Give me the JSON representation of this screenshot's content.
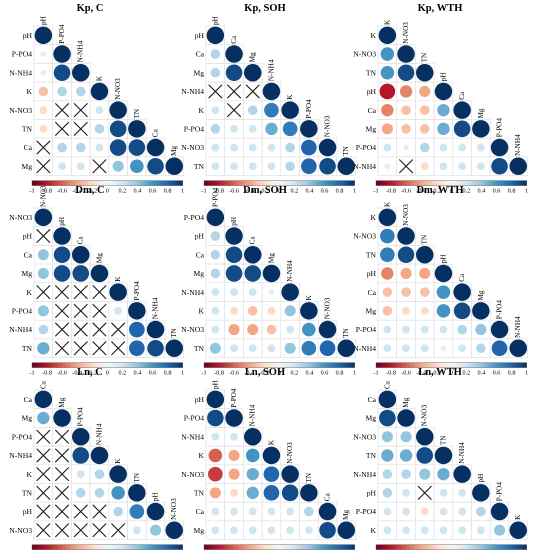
{
  "colors": {
    "neg": "#67001f",
    "mid": "#f7f7f7",
    "pos": "#053061",
    "grid": "#dcdcdc",
    "cross": "#1a1a1a"
  },
  "colorbar_ticks": [
    "-1",
    "-0.8",
    "-0.6",
    "-0.4",
    "-0.2",
    "0",
    "0.2",
    "0.4",
    "0.6",
    "0.8",
    "1"
  ],
  "chart_data": [
    {
      "type": "heatmap",
      "title": "Kp, C",
      "variables": [
        "pH",
        "P-PO4",
        "N-NH4",
        "K",
        "N-NO3",
        "TN",
        "Ca",
        "Mg"
      ],
      "matrix": [
        [
          1,
          null,
          null,
          null,
          null,
          null,
          null,
          null
        ],
        [
          0.1,
          1,
          null,
          null,
          null,
          null,
          null,
          null
        ],
        [
          -0.1,
          0.9,
          1,
          null,
          null,
          null,
          null,
          null
        ],
        [
          -0.3,
          0.3,
          0.3,
          1,
          null,
          null,
          null,
          null
        ],
        [
          -0.2,
          "x",
          "x",
          0.2,
          1,
          null,
          null,
          null
        ],
        [
          -0.2,
          "x",
          "x",
          0.3,
          0.9,
          1,
          null,
          null
        ],
        [
          "x",
          0.3,
          0.3,
          0.2,
          0.9,
          0.9,
          1,
          null
        ],
        [
          "x",
          0.2,
          0.2,
          "x",
          0.4,
          0.6,
          0.9,
          1
        ]
      ]
    },
    {
      "type": "heatmap",
      "title": "Kp, SOH",
      "variables": [
        "pH",
        "Ca",
        "Mg",
        "N-NH4",
        "K",
        "P-PO4",
        "N-NO3",
        "TN"
      ],
      "matrix": [
        [
          1,
          null,
          null,
          null,
          null,
          null,
          null,
          null
        ],
        [
          0.3,
          1,
          null,
          null,
          null,
          null,
          null,
          null
        ],
        [
          0.3,
          0.9,
          1,
          null,
          null,
          null,
          null,
          null
        ],
        [
          "x",
          "x",
          "x",
          1,
          null,
          null,
          null,
          null
        ],
        [
          0.2,
          "x",
          0.3,
          0.7,
          1,
          null,
          null,
          null
        ],
        [
          0.3,
          0.2,
          0.2,
          0.5,
          0.7,
          1,
          null,
          null
        ],
        [
          0.2,
          0.2,
          0.2,
          0.2,
          0.3,
          0.8,
          1,
          null
        ],
        [
          0.2,
          0.2,
          0.2,
          0.2,
          0.3,
          0.8,
          0.9,
          1
        ]
      ]
    },
    {
      "type": "heatmap",
      "title": "Kp, WTH",
      "variables": [
        "K",
        "N-NO3",
        "TN",
        "pH",
        "Ca",
        "Mg",
        "P-PO4",
        "N-NH4"
      ],
      "matrix": [
        [
          1,
          null,
          null,
          null,
          null,
          null,
          null,
          null
        ],
        [
          0.6,
          1,
          null,
          null,
          null,
          null,
          null,
          null
        ],
        [
          0.6,
          0.9,
          1,
          null,
          null,
          null,
          null,
          null
        ],
        [
          -0.8,
          -0.5,
          -0.4,
          1,
          null,
          null,
          null,
          null
        ],
        [
          -0.5,
          -0.3,
          -0.3,
          0.5,
          1,
          null,
          null,
          null
        ],
        [
          -0.4,
          -0.3,
          -0.3,
          0.5,
          0.9,
          1,
          null,
          null
        ],
        [
          0.2,
          0.1,
          0.3,
          0.2,
          0.2,
          0.2,
          1,
          null
        ],
        [
          0.1,
          "x",
          -0.2,
          0.2,
          0.2,
          0.2,
          0.9,
          1
        ]
      ]
    },
    {
      "type": "heatmap",
      "title": "Dm, C",
      "variables": [
        "N-NO3",
        "pH",
        "Ca",
        "Mg",
        "K",
        "P-PO4",
        "N-NH4",
        "TN"
      ],
      "matrix": [
        [
          1,
          null,
          null,
          null,
          null,
          null,
          null,
          null
        ],
        [
          "x",
          1,
          null,
          null,
          null,
          null,
          null,
          null
        ],
        [
          0.4,
          0.9,
          1,
          null,
          null,
          null,
          null,
          null
        ],
        [
          0.4,
          0.9,
          0.9,
          1,
          null,
          null,
          null,
          null
        ],
        [
          "x",
          "x",
          "x",
          "x",
          1,
          null,
          null,
          null
        ],
        [
          0.4,
          "x",
          "x",
          "x",
          0.2,
          1,
          null,
          null
        ],
        [
          0.3,
          "x",
          "x",
          "x",
          "x",
          0.8,
          1,
          null
        ],
        [
          0.5,
          "x",
          "x",
          "x",
          "x",
          0.8,
          0.9,
          1
        ]
      ]
    },
    {
      "type": "heatmap",
      "title": "Dm, SOH",
      "variables": [
        "P-PO4",
        "pH",
        "Ca",
        "Mg",
        "N-NH4",
        "K",
        "N-NO3",
        "TN"
      ],
      "matrix": [
        [
          1,
          null,
          null,
          null,
          null,
          null,
          null,
          null
        ],
        [
          0.3,
          1,
          null,
          null,
          null,
          null,
          null,
          null
        ],
        [
          0.3,
          0.9,
          1,
          null,
          null,
          null,
          null,
          null
        ],
        [
          0.3,
          0.9,
          0.9,
          1,
          null,
          null,
          null,
          null
        ],
        [
          0.2,
          0.2,
          0.2,
          0.1,
          1,
          null,
          null,
          null
        ],
        [
          0.2,
          -0.2,
          -0.3,
          -0.2,
          0.4,
          1,
          null,
          null
        ],
        [
          0.2,
          -0.4,
          -0.4,
          -0.3,
          0.2,
          0.6,
          1,
          null
        ],
        [
          0.4,
          0.2,
          0.2,
          0.2,
          0.4,
          0.7,
          0.8,
          1
        ]
      ]
    },
    {
      "type": "heatmap",
      "title": "Dm, WTH",
      "variables": [
        "K",
        "N-NO3",
        "TN",
        "pH",
        "Ca",
        "Mg",
        "P-PO4",
        "N-NH4"
      ],
      "matrix": [
        [
          1,
          null,
          null,
          null,
          null,
          null,
          null,
          null
        ],
        [
          0.7,
          1,
          null,
          null,
          null,
          null,
          null,
          null
        ],
        [
          0.7,
          0.9,
          1,
          null,
          null,
          null,
          null,
          null
        ],
        [
          -0.5,
          -0.4,
          -0.4,
          1,
          null,
          null,
          null,
          null
        ],
        [
          -0.3,
          -0.3,
          -0.3,
          0.6,
          1,
          null,
          null,
          null
        ],
        [
          -0.3,
          -0.2,
          -0.2,
          0.6,
          0.9,
          1,
          null,
          null
        ],
        [
          0.2,
          0.2,
          0.2,
          0.2,
          0.3,
          0.4,
          1,
          null
        ],
        [
          0.2,
          0.2,
          0.2,
          0.1,
          0.2,
          0.3,
          0.8,
          1
        ]
      ]
    },
    {
      "type": "heatmap",
      "title": "Ln, C",
      "variables": [
        "Ca",
        "Mg",
        "P-PO4",
        "N-NH4",
        "K",
        "TN",
        "pH",
        "N-NO3"
      ],
      "matrix": [
        [
          1,
          null,
          null,
          null,
          null,
          null,
          null,
          null
        ],
        [
          0.5,
          1,
          null,
          null,
          null,
          null,
          null,
          null
        ],
        [
          "x",
          "x",
          1,
          null,
          null,
          null,
          null,
          null
        ],
        [
          "x",
          "x",
          0.9,
          1,
          null,
          null,
          null,
          null
        ],
        [
          "x",
          "x",
          0.2,
          0.3,
          1,
          null,
          null,
          null
        ],
        [
          "x",
          "x",
          0.3,
          0.3,
          0.6,
          1,
          null,
          null
        ],
        [
          "x",
          "x",
          "x",
          "x",
          0.3,
          0.7,
          1,
          null
        ],
        [
          "x",
          "x",
          "x",
          "x",
          "x",
          0.2,
          0.4,
          1
        ]
      ]
    },
    {
      "type": "heatmap",
      "title": "Ln, SOH",
      "variables": [
        "pH",
        "P-PO4",
        "N-NH4",
        "K",
        "N-NO3",
        "TN",
        "Ca",
        "Mg"
      ],
      "matrix": [
        [
          1,
          null,
          null,
          null,
          null,
          null,
          null,
          null
        ],
        [
          0.9,
          1,
          null,
          null,
          null,
          null,
          null,
          null
        ],
        [
          0.2,
          0.2,
          1,
          null,
          null,
          null,
          null,
          null
        ],
        [
          -0.6,
          -0.4,
          0.6,
          1,
          null,
          null,
          null,
          null
        ],
        [
          -0.7,
          -0.4,
          0.5,
          0.8,
          1,
          null,
          null,
          null
        ],
        [
          -0.4,
          -0.2,
          0.5,
          0.8,
          0.9,
          1,
          null,
          null
        ],
        [
          0.2,
          0.2,
          0.2,
          0.2,
          0.2,
          0.3,
          1,
          null
        ],
        [
          0.2,
          0.2,
          0.2,
          0.2,
          0.2,
          0.2,
          0.9,
          1
        ]
      ]
    },
    {
      "type": "heatmap",
      "title": "Ln, WTH",
      "variables": [
        "Ca",
        "Mg",
        "N-NO3",
        "TN",
        "N-NH4",
        "pH",
        "P-PO4",
        "K"
      ],
      "matrix": [
        [
          1,
          null,
          null,
          null,
          null,
          null,
          null,
          null
        ],
        [
          0.9,
          1,
          null,
          null,
          null,
          null,
          null,
          null
        ],
        [
          0.4,
          0.4,
          1,
          null,
          null,
          null,
          null,
          null
        ],
        [
          0.5,
          0.5,
          0.9,
          1,
          null,
          null,
          null,
          null
        ],
        [
          0.3,
          0.3,
          0.4,
          0.5,
          1,
          null,
          null,
          null
        ],
        [
          0.3,
          0.2,
          "x",
          0.2,
          0.2,
          1,
          null,
          null
        ],
        [
          0.2,
          0.2,
          -0.2,
          0.2,
          0.2,
          0.3,
          1,
          null
        ],
        [
          0.2,
          0.2,
          0.2,
          0.2,
          0.2,
          0.2,
          0.4,
          1
        ]
      ]
    }
  ]
}
